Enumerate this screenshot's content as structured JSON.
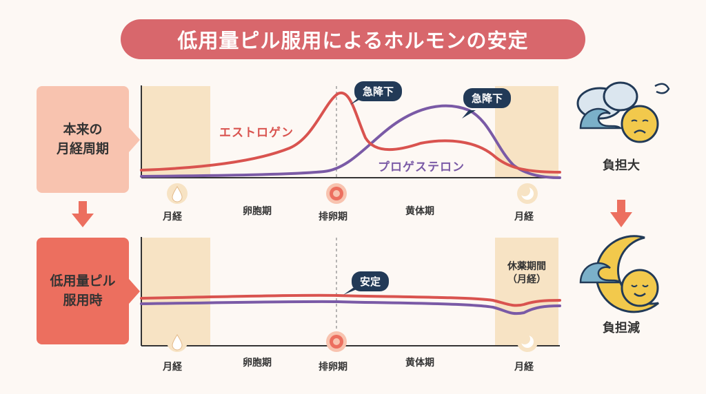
{
  "title": "低用量ピル服用によるホルモンの安定",
  "rows": {
    "natural": {
      "label": "本来の\n月経周期"
    },
    "pill": {
      "label": "低用量ピル\n服用時"
    }
  },
  "phases": {
    "menstruation_start": "月経",
    "follicular": "卵胞期",
    "ovulation": "排卵期",
    "luteal": "黄体期",
    "menstruation_end": "月経"
  },
  "curves": {
    "estrogen": "エストロゲン",
    "progesterone": "プロゲステロン"
  },
  "callouts": {
    "estrogen_drop": "急降下",
    "progesterone_drop": "急降下",
    "stable": "安定"
  },
  "rest_period": "休薬期間\n（月経）",
  "burden": {
    "high": "負担大",
    "low": "負担減"
  },
  "colors": {
    "title_bg": "#d8676c",
    "estrogen": "#d9534f",
    "progesterone": "#7a5aa6",
    "menses_band": "#f7e3c4",
    "badge": "#223a57",
    "natural_label_bg": "#f8c3af",
    "pill_label_bg": "#ec6f5f"
  },
  "icons": {
    "menstruation": "drop-icon",
    "ovulation": "egg-icon",
    "moon": "moon-icon",
    "wave": "wave-icon",
    "cloud": "cloud-icon",
    "sad_face": "sad-face-icon",
    "calm_face": "calm-face-icon"
  }
}
